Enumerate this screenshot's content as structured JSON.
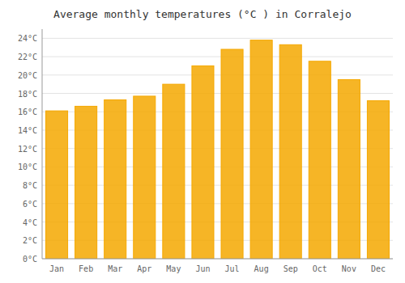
{
  "chart_data": {
    "type": "bar",
    "title": "Average monthly temperatures (°C ) in Corralejo",
    "categories": [
      "Jan",
      "Feb",
      "Mar",
      "Apr",
      "May",
      "Jun",
      "Jul",
      "Aug",
      "Sep",
      "Oct",
      "Nov",
      "Dec"
    ],
    "values": [
      16.1,
      16.6,
      17.3,
      17.7,
      19.0,
      21.0,
      22.8,
      23.8,
      23.3,
      21.5,
      19.5,
      17.2
    ],
    "color": "#F5A800",
    "ylim": [
      0,
      25
    ],
    "yticks": [
      {
        "value": 0,
        "label": "0°C"
      },
      {
        "value": 2,
        "label": "2°C"
      },
      {
        "value": 4,
        "label": "4°C"
      },
      {
        "value": 6,
        "label": "6°C"
      },
      {
        "value": 8,
        "label": "8°C"
      },
      {
        "value": 10,
        "label": "10°C"
      },
      {
        "value": 12,
        "label": "12°C"
      },
      {
        "value": 14,
        "label": "14°C"
      },
      {
        "value": 16,
        "label": "16°C"
      },
      {
        "value": 18,
        "label": "18°C"
      },
      {
        "value": 20,
        "label": "20°C"
      },
      {
        "value": 22,
        "label": "22°C"
      },
      {
        "value": 24,
        "label": "24°C"
      }
    ],
    "grid": true
  }
}
